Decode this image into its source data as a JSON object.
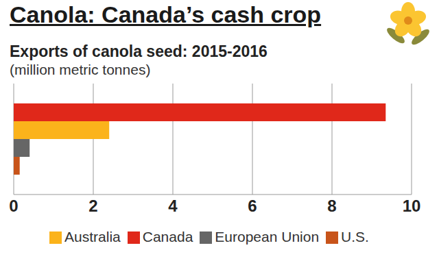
{
  "chart_data": {
    "type": "bar",
    "title": "Canola: Canada’s cash crop",
    "subtitle": "Exports of canola seed: 2015-2016",
    "x_label": "(million metric tonnes)",
    "orientation": "horizontal",
    "categories": [
      null
    ],
    "series": [
      {
        "name": "Canada",
        "color": "#e0281a",
        "values": [
          9.35
        ]
      },
      {
        "name": "Australia",
        "color": "#fbb31b",
        "values": [
          2.4
        ]
      },
      {
        "name": "European Union",
        "color": "#666666",
        "values": [
          0.4
        ]
      },
      {
        "name": "U.S.",
        "color": "#c8541a",
        "values": [
          0.15
        ]
      }
    ],
    "xlim": [
      0,
      10
    ],
    "xticks": [
      0,
      2,
      4,
      6,
      8,
      10
    ],
    "grid": true,
    "legend": "bottom",
    "tick_labels": "x"
  }
}
